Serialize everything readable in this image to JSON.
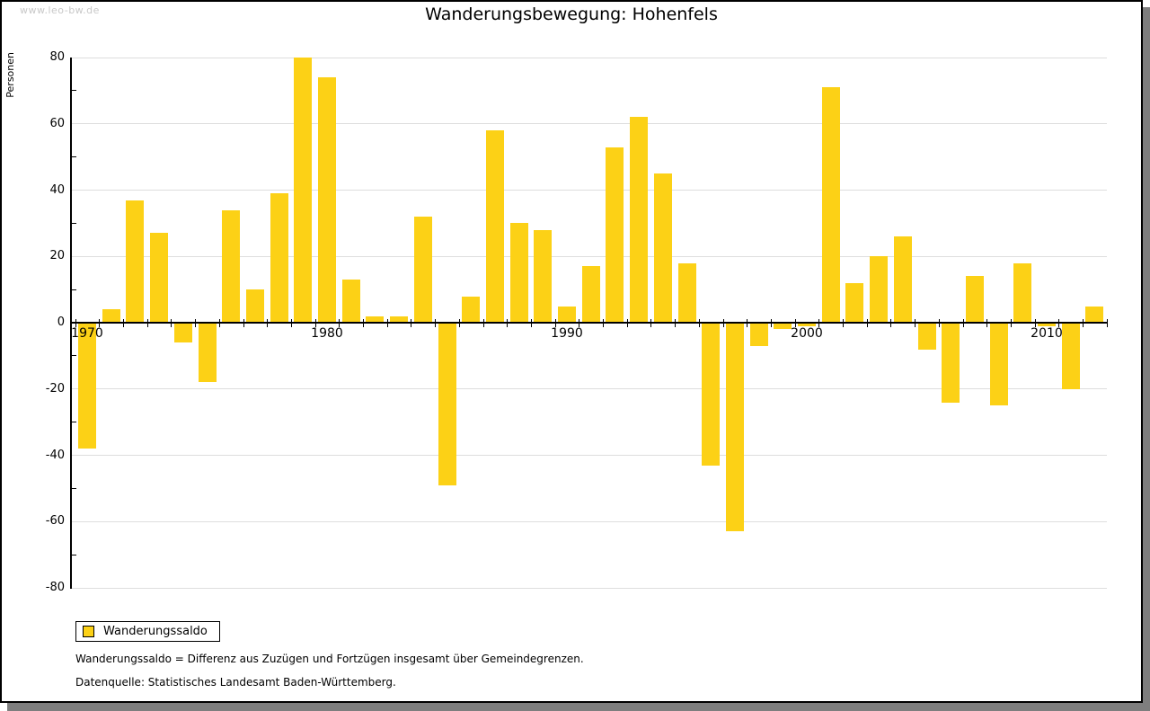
{
  "watermark": "www.leo-bw.de",
  "header": {
    "title": "Wanderungsbewegung: Hohenfels"
  },
  "legend": {
    "label": "Wanderungssaldo"
  },
  "footnotes": {
    "definition": "Wanderungssaldo = Differenz aus Zuzügen und Fortzügen insgesamt über Gemeindegrenzen.",
    "source": "Datenquelle: Statistisches Landesamt Baden-Württemberg."
  },
  "colors": {
    "bar": "#FCD116",
    "grid": "#DEDEDE",
    "axis": "#000000",
    "shadow": "#7E7E7E",
    "watermark": "#C8C8C8"
  },
  "chart_data": {
    "type": "bar",
    "title": "Wanderungsbewegung: Hohenfels",
    "ylabel": "Personen",
    "series_name": "Wanderungssaldo",
    "years": [
      1970,
      1971,
      1972,
      1973,
      1974,
      1975,
      1976,
      1977,
      1978,
      1979,
      1980,
      1981,
      1982,
      1983,
      1984,
      1985,
      1986,
      1987,
      1988,
      1989,
      1990,
      1991,
      1992,
      1993,
      1994,
      1995,
      1996,
      1997,
      1998,
      1999,
      2000,
      2001,
      2002,
      2003,
      2004,
      2005,
      2006,
      2007,
      2008,
      2009,
      2010,
      2011,
      2012
    ],
    "values": [
      -38,
      4,
      37,
      27,
      -6,
      -18,
      34,
      10,
      39,
      80,
      74,
      13,
      2,
      2,
      32,
      -49,
      8,
      58,
      30,
      28,
      5,
      17,
      53,
      62,
      45,
      18,
      -43,
      -63,
      -7,
      -2,
      -1,
      71,
      12,
      20,
      26,
      -8,
      -24,
      14,
      -25,
      18,
      -1,
      -20,
      5
    ],
    "ylim": [
      -80,
      80
    ],
    "ytick_minor_step": 10,
    "ytick_labeled_step": 20,
    "xticks_labeled": [
      1970,
      1980,
      1990,
      2000,
      2010
    ],
    "grid": true,
    "legend_position": "bottom-left",
    "bar_color": "#FCD116"
  }
}
